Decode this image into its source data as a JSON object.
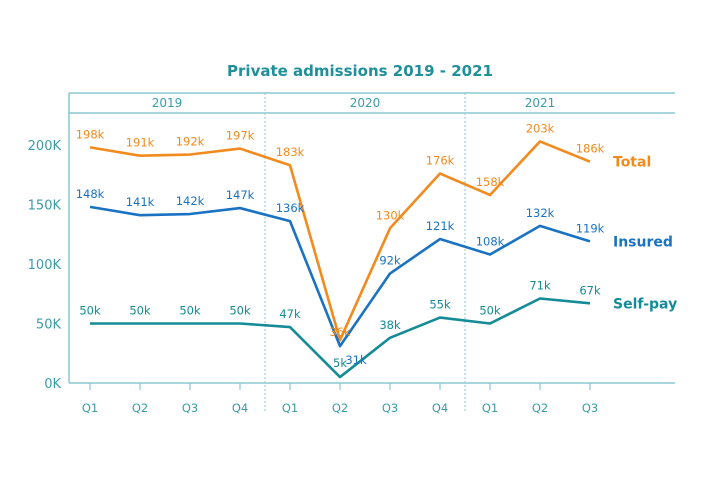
{
  "chart_data": {
    "type": "line",
    "title": "Private admissions 2019 - 2021",
    "groups": [
      {
        "label": "2019",
        "quarters": [
          "Q1",
          "Q2",
          "Q3",
          "Q4"
        ]
      },
      {
        "label": "2020",
        "quarters": [
          "Q1",
          "Q2",
          "Q3",
          "Q4"
        ]
      },
      {
        "label": "2021",
        "quarters": [
          "Q1",
          "Q2",
          "Q3"
        ]
      }
    ],
    "categories": [
      "Q1",
      "Q2",
      "Q3",
      "Q4",
      "Q1",
      "Q2",
      "Q3",
      "Q4",
      "Q1",
      "Q2",
      "Q3"
    ],
    "yticks": [
      "0K",
      "50K",
      "100K",
      "150K",
      "200K"
    ],
    "ylim": [
      0,
      230
    ],
    "unit": "thousands",
    "series": [
      {
        "name": "Total",
        "color": "#f28a1e",
        "values": [
          198,
          191,
          192,
          197,
          183,
          36,
          130,
          176,
          158,
          203,
          186
        ],
        "labels": [
          "198k",
          "191k",
          "192k",
          "197k",
          "183k",
          "36k",
          "130k",
          "176k",
          "158k",
          "203k",
          "186k"
        ]
      },
      {
        "name": "Insured",
        "color": "#1a72c2",
        "values": [
          148,
          141,
          142,
          147,
          136,
          31,
          92,
          121,
          108,
          132,
          119
        ],
        "labels": [
          "148k",
          "141k",
          "142k",
          "147k",
          "136k",
          "31k",
          "92k",
          "121k",
          "108k",
          "132k",
          "119k"
        ]
      },
      {
        "name": "Self-pay",
        "color": "#148b96",
        "values": [
          50,
          50,
          50,
          50,
          47,
          5,
          38,
          55,
          50,
          71,
          67
        ],
        "labels": [
          "50k",
          "50k",
          "50k",
          "50k",
          "47k",
          "5k",
          "38k",
          "55k",
          "50k",
          "71k",
          "67k"
        ]
      }
    ],
    "legend": "right-end labels",
    "axis_color": "#8cc8d2"
  }
}
